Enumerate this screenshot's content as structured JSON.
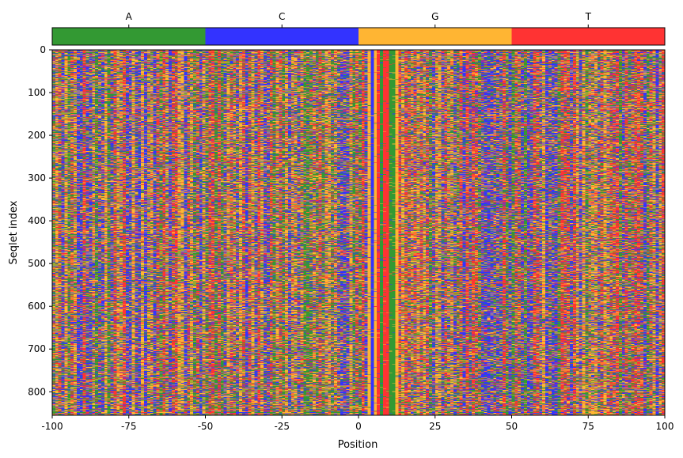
{
  "chart_data": {
    "type": "heatmap",
    "title": "",
    "legend": {
      "position": "top",
      "items": [
        {
          "label": "A",
          "color": "#339933"
        },
        {
          "label": "C",
          "color": "#3333ff"
        },
        {
          "label": "G",
          "color": "#ffb533"
        },
        {
          "label": "T",
          "color": "#ff3333"
        }
      ]
    },
    "x": {
      "label": "Position",
      "range": [
        -100,
        100
      ],
      "ticks": [
        -100,
        -75,
        -50,
        -25,
        0,
        25,
        50,
        75,
        100
      ],
      "tick_labels": [
        "-100",
        "-75",
        "-50",
        "-25",
        "0",
        "25",
        "50",
        "75",
        "100"
      ]
    },
    "y": {
      "label": "Seqlet index",
      "range": [
        0,
        855
      ],
      "inverted": true,
      "ticks": [
        0,
        100,
        200,
        300,
        400,
        500,
        600,
        700,
        800
      ],
      "tick_labels": [
        "0",
        "100",
        "200",
        "300",
        "400",
        "500",
        "600",
        "700",
        "800"
      ]
    },
    "n_positions": 200,
    "n_seqlets": 855,
    "motif_core": {
      "positions": [
        3,
        4,
        5,
        6,
        7,
        8,
        9,
        10,
        11,
        12
      ],
      "bases": [
        "G",
        "C",
        "G",
        "T",
        "A",
        "T",
        "T",
        "A",
        "A",
        "G"
      ],
      "conservation": 0.92
    },
    "flank_base_frequencies": {
      "A": 0.28,
      "C": 0.22,
      "G": 0.27,
      "T": 0.23
    },
    "grid": false
  }
}
